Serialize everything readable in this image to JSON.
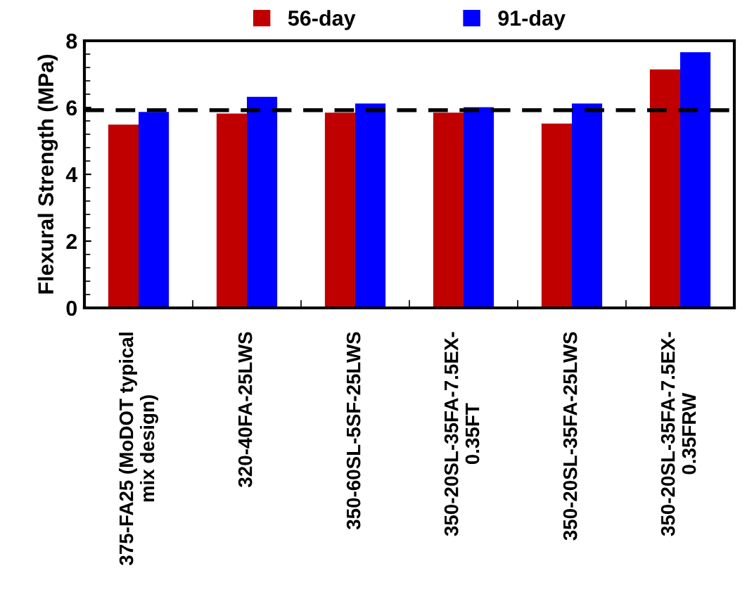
{
  "chart_data": {
    "type": "bar",
    "ylabel": "Flexural Strength (MPa)",
    "categories": [
      "375-FA25 (MoDOT typical\nmix design)",
      "320-40FA-25LWS",
      "350-60SL-5SF-25LWS",
      "350-20SL-35FA-7.5EX-\n0.35FT",
      "350-20SL-35FA-25LWS",
      "350-20SL-35FA-7.5EX-\n0.35FRW"
    ],
    "series": [
      {
        "name": "56-day",
        "color": "#c00000",
        "values": [
          5.49,
          5.82,
          5.85,
          5.85,
          5.52,
          7.14
        ]
      },
      {
        "name": "91-day",
        "color": "#0000ff",
        "values": [
          5.87,
          6.32,
          6.12,
          6.01,
          6.12,
          7.66
        ]
      }
    ],
    "ylim": [
      0,
      8
    ],
    "yticks": [
      0,
      2,
      4,
      6,
      8
    ],
    "grid": false,
    "legend": "top",
    "ref_lines": [
      {
        "axis": "y",
        "value": 5.92,
        "color": "#000000",
        "line_style": "dashed"
      }
    ]
  }
}
